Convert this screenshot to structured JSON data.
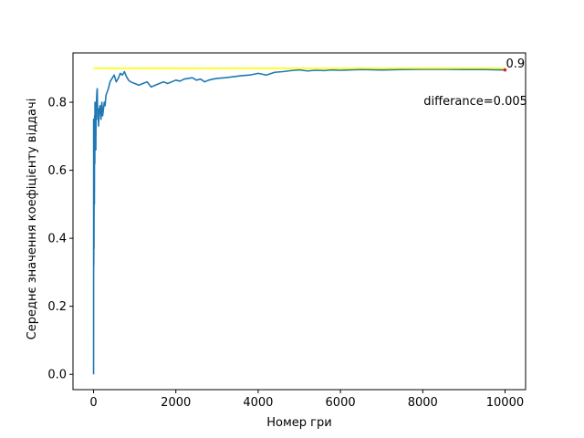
{
  "chart_data": {
    "type": "line",
    "title": "",
    "xlabel": "Номер гри",
    "ylabel": "Середнє значення коефіцієнту віддачі",
    "xlim": [
      -500,
      10500
    ],
    "ylim": [
      -0.045,
      0.945
    ],
    "xticks": [
      0,
      2000,
      4000,
      6000,
      8000,
      10000
    ],
    "xtick_labels": [
      "0",
      "2000",
      "4000",
      "6000",
      "8000",
      "10000"
    ],
    "yticks": [
      0.0,
      0.2,
      0.4,
      0.6,
      0.8
    ],
    "ytick_labels": [
      "0.0",
      "0.2",
      "0.4",
      "0.6",
      "0.8"
    ],
    "grid": false,
    "series": [
      {
        "color": "#1f77b4",
        "x": [
          0,
          2,
          5,
          8,
          10,
          15,
          20,
          25,
          30,
          35,
          40,
          45,
          50,
          55,
          60,
          70,
          80,
          90,
          100,
          110,
          120,
          140,
          160,
          180,
          200,
          220,
          240,
          260,
          280,
          300,
          330,
          360,
          400,
          450,
          500,
          550,
          600,
          650,
          700,
          750,
          800,
          850,
          900,
          1000,
          1100,
          1200,
          1300,
          1400,
          1500,
          1600,
          1700,
          1800,
          1900,
          2000,
          2100,
          2200,
          2300,
          2400,
          2500,
          2600,
          2700,
          2800,
          2900,
          3000,
          3200,
          3400,
          3600,
          3800,
          4000,
          4200,
          4400,
          4600,
          4800,
          5000,
          5200,
          5400,
          5600,
          5800,
          6000,
          6500,
          7000,
          7500,
          8000,
          8500,
          9000,
          9500,
          10000
        ],
        "y": [
          0.0,
          0.75,
          0.32,
          0.68,
          0.37,
          0.72,
          0.5,
          0.76,
          0.62,
          0.8,
          0.7,
          0.68,
          0.75,
          0.66,
          0.78,
          0.8,
          0.83,
          0.84,
          0.75,
          0.78,
          0.73,
          0.78,
          0.79,
          0.75,
          0.8,
          0.76,
          0.78,
          0.8,
          0.79,
          0.82,
          0.83,
          0.84,
          0.86,
          0.87,
          0.88,
          0.86,
          0.87,
          0.885,
          0.88,
          0.89,
          0.875,
          0.865,
          0.86,
          0.855,
          0.85,
          0.855,
          0.86,
          0.845,
          0.85,
          0.855,
          0.86,
          0.855,
          0.86,
          0.865,
          0.862,
          0.868,
          0.87,
          0.872,
          0.865,
          0.868,
          0.86,
          0.865,
          0.868,
          0.87,
          0.872,
          0.875,
          0.878,
          0.88,
          0.885,
          0.88,
          0.888,
          0.89,
          0.893,
          0.895,
          0.892,
          0.894,
          0.893,
          0.895,
          0.894,
          0.896,
          0.895,
          0.896,
          0.897,
          0.897,
          0.896,
          0.896,
          0.895
        ]
      },
      {
        "color": "#ffff00",
        "x": [
          0,
          10000
        ],
        "y": [
          0.9,
          0.9
        ]
      }
    ],
    "marker": {
      "x": 10000,
      "y": 0.895,
      "color": "#d62728"
    },
    "annotations": [
      {
        "text": "0.9",
        "x": 10000,
        "y": 0.9
      },
      {
        "text": "differance=0.005",
        "x": 8000,
        "y": 0.8
      }
    ]
  }
}
